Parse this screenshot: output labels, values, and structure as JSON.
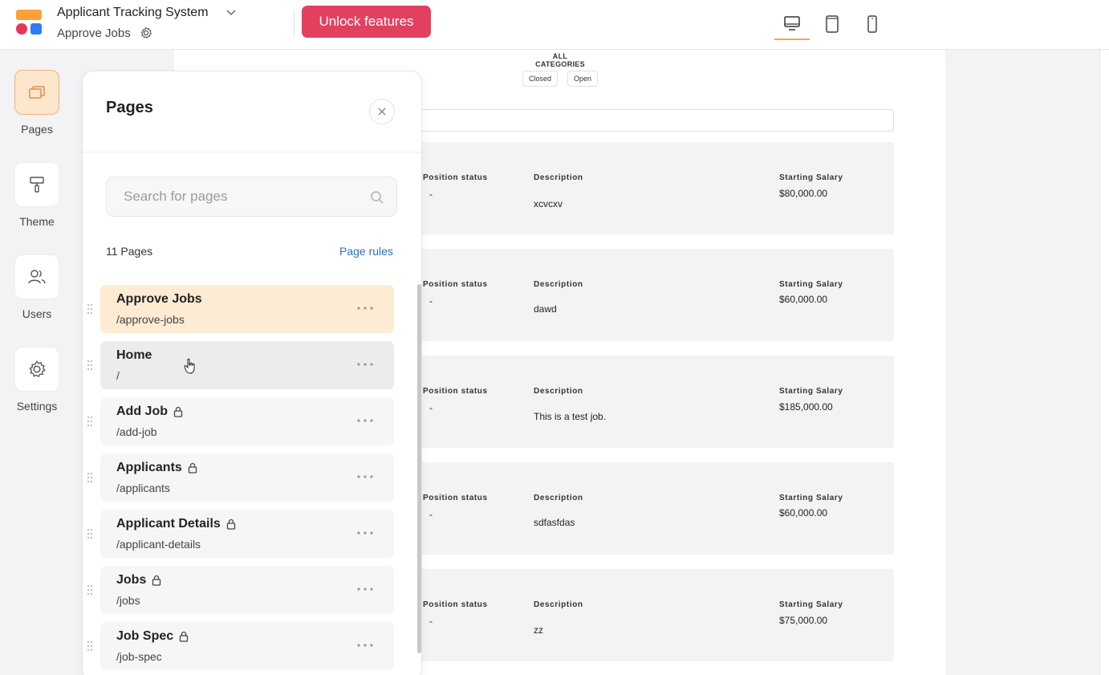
{
  "header": {
    "app_title": "Applicant Tracking System",
    "current_page": "Approve Jobs",
    "unlock_label": "Unlock features",
    "devices": [
      "desktop-icon",
      "tablet-icon",
      "mobile-icon"
    ],
    "active_device": "desktop"
  },
  "rail": {
    "items": [
      {
        "label": "Pages",
        "icon": "pages-icon",
        "active": true
      },
      {
        "label": "Theme",
        "icon": "paint-roller-icon",
        "active": false
      },
      {
        "label": "Users",
        "icon": "users-icon",
        "active": false
      },
      {
        "label": "Settings",
        "icon": "gear-icon",
        "active": false
      }
    ]
  },
  "panel": {
    "title": "Pages",
    "search_placeholder": "Search for pages",
    "count_label": "11 Pages",
    "rules_label": "Page rules",
    "pages": [
      {
        "name": "Approve Jobs",
        "path": "/approve-jobs",
        "locked": false
      },
      {
        "name": "Home",
        "path": "/",
        "locked": false
      },
      {
        "name": "Add Job",
        "path": "/add-job",
        "locked": true
      },
      {
        "name": "Applicants",
        "path": "/applicants",
        "locked": true
      },
      {
        "name": "Applicant Details",
        "path": "/applicant-details",
        "locked": true
      },
      {
        "name": "Jobs",
        "path": "/jobs",
        "locked": true
      },
      {
        "name": "Job Spec",
        "path": "/job-spec",
        "locked": true
      }
    ]
  },
  "preview": {
    "all_categories": "ALL CATEGORIES",
    "chips": [
      "Closed",
      "Open"
    ],
    "labels": {
      "status": "Position status",
      "description": "Description",
      "salary": "Starting Salary"
    },
    "jobs": [
      {
        "status": "-",
        "description": "xcvcxv",
        "salary": "$80,000.00"
      },
      {
        "status": "-",
        "description": "dawd",
        "salary": "$60,000.00"
      },
      {
        "status": "-",
        "description": "This is a test job.",
        "salary": "$185,000.00"
      },
      {
        "status": "-",
        "description": "sdfasfdas",
        "salary": "$60,000.00"
      },
      {
        "status": "-",
        "description": "zz",
        "salary": "$75,000.00"
      }
    ]
  }
}
